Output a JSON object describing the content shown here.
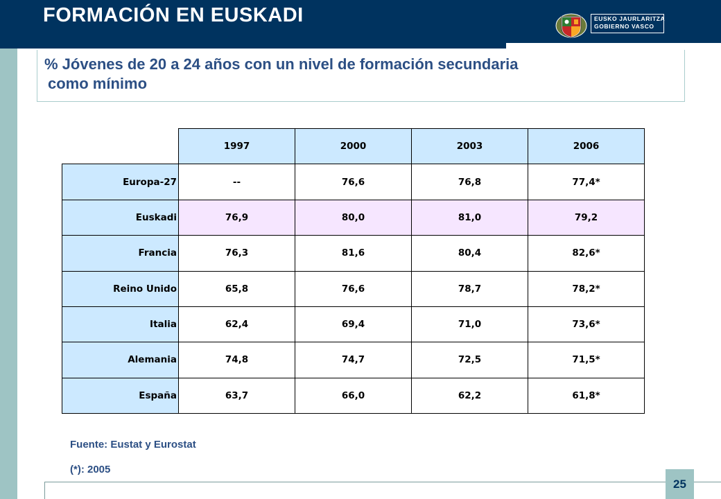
{
  "header": {
    "title": "FORMACIÓN EN EUSKADI",
    "logo_line1": "EUSKO JAURLARITZA",
    "logo_line2": "GOBIERNO VASCO"
  },
  "subtitle": {
    "line1": "% Jóvenes de 20 a 24 años con un nivel de formación secundaria",
    "line2": "como mínimo"
  },
  "table": {
    "years": [
      "1997",
      "2000",
      "2003",
      "2006"
    ],
    "rows": [
      {
        "label": "Europa-27",
        "values": [
          "--",
          "76,6",
          "76,8",
          "77,4*"
        ]
      },
      {
        "label": "Euskadi",
        "values": [
          "76,9",
          "80,0",
          "81,0",
          "79,2"
        ]
      },
      {
        "label": "Francia",
        "values": [
          "76,3",
          "81,6",
          "80,4",
          "82,6*"
        ]
      },
      {
        "label": "Reino Unido",
        "values": [
          "65,8",
          "76,6",
          "78,7",
          "78,2*"
        ]
      },
      {
        "label": "Italia",
        "values": [
          "62,4",
          "69,4",
          "71,0",
          "73,6*"
        ]
      },
      {
        "label": "Alemania",
        "values": [
          "74,8",
          "74,7",
          "72,5",
          "71,5*"
        ]
      },
      {
        "label": "España",
        "values": [
          "63,7",
          "66,0",
          "62,2",
          "61,8*"
        ]
      }
    ]
  },
  "footer": {
    "source": "Fuente: Eustat y Eurostat",
    "note": "(*): 2005",
    "page_number": "25"
  },
  "colors": {
    "header_bg": "#00335f",
    "accent_stripe": "#9ec4c4",
    "header_cell_bg": "#cce9ff",
    "highlight_row_bg": "#f6e6ff",
    "text_blue": "#2c4f84"
  }
}
